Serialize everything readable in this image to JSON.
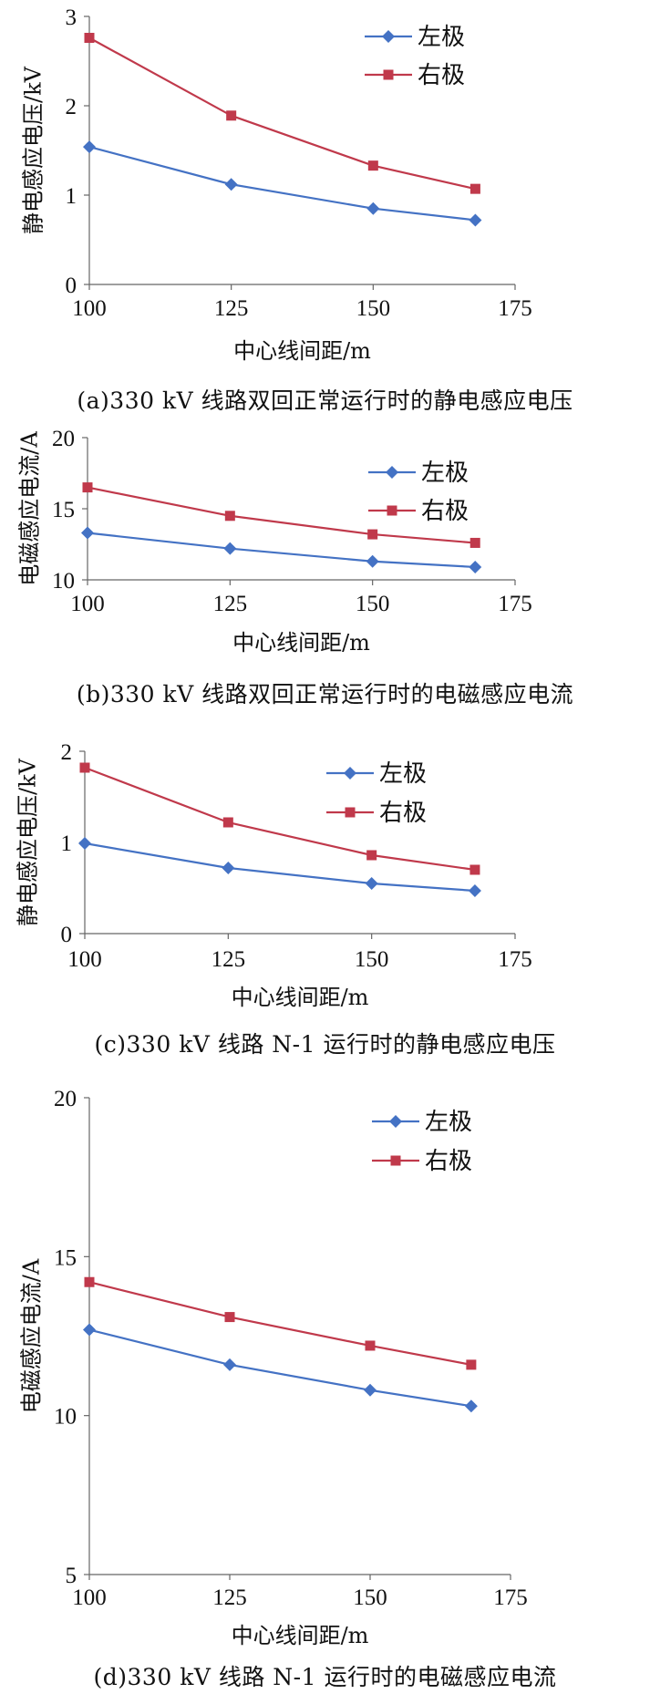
{
  "series_colors": {
    "left": "#4472C4",
    "right": "#C0394B"
  },
  "chart_data": [
    {
      "type": "line",
      "panel": "a",
      "xlabel": "中心线间距/m",
      "ylabel": "静电感应电压/kV",
      "xlim": [
        100,
        175
      ],
      "xticks": [
        100,
        125,
        150,
        175
      ],
      "ylim": [
        0,
        3
      ],
      "yticks": [
        0,
        1,
        2,
        3
      ],
      "grid": false,
      "legend": "top-right",
      "series": [
        {
          "name": "左极",
          "marker": "diamond",
          "x": [
            100,
            125,
            150,
            168
          ],
          "y": [
            1.54,
            1.12,
            0.85,
            0.72
          ]
        },
        {
          "name": "右极",
          "marker": "square",
          "x": [
            100,
            125,
            150,
            168
          ],
          "y": [
            2.76,
            1.89,
            1.33,
            1.07
          ]
        }
      ],
      "caption": "(a)330 kV 线路双回正常运行时的静电感应电压"
    },
    {
      "type": "line",
      "panel": "b",
      "xlabel": "中心线间距/m",
      "ylabel": "电磁感应电流/A",
      "xlim": [
        100,
        175
      ],
      "xticks": [
        100,
        125,
        150,
        175
      ],
      "ylim": [
        10,
        20
      ],
      "yticks": [
        10,
        15,
        20
      ],
      "grid": false,
      "legend": "top-right",
      "series": [
        {
          "name": "左极",
          "marker": "diamond",
          "x": [
            100,
            125,
            150,
            168
          ],
          "y": [
            13.3,
            12.2,
            11.3,
            10.9
          ]
        },
        {
          "name": "右极",
          "marker": "square",
          "x": [
            100,
            125,
            150,
            168
          ],
          "y": [
            16.5,
            14.5,
            13.2,
            12.6
          ]
        }
      ],
      "caption": "(b)330 kV 线路双回正常运行时的电磁感应电流"
    },
    {
      "type": "line",
      "panel": "c",
      "xlabel": "中心线间距/m",
      "ylabel": "静电感应电压/kV",
      "xlim": [
        100,
        175
      ],
      "xticks": [
        100,
        125,
        150,
        175
      ],
      "ylim": [
        0,
        2
      ],
      "yticks": [
        0,
        1,
        2
      ],
      "grid": false,
      "legend": "top-right",
      "series": [
        {
          "name": "左极",
          "marker": "diamond",
          "x": [
            100,
            125,
            150,
            168
          ],
          "y": [
            0.99,
            0.72,
            0.55,
            0.47
          ]
        },
        {
          "name": "右极",
          "marker": "square",
          "x": [
            100,
            125,
            150,
            168
          ],
          "y": [
            1.82,
            1.22,
            0.86,
            0.7
          ]
        }
      ],
      "caption": "(c)330 kV 线路 N-1 运行时的静电感应电压"
    },
    {
      "type": "line",
      "panel": "d",
      "xlabel": "中心线间距/m",
      "ylabel": "电磁感应电流/A",
      "xlim": [
        100,
        175
      ],
      "xticks": [
        100,
        125,
        150,
        175
      ],
      "ylim": [
        5,
        20
      ],
      "yticks": [
        5,
        10,
        15,
        20
      ],
      "grid": false,
      "legend": "top-right",
      "series": [
        {
          "name": "左极",
          "marker": "diamond",
          "x": [
            100,
            125,
            150,
            168
          ],
          "y": [
            12.7,
            11.6,
            10.8,
            10.3
          ]
        },
        {
          "name": "右极",
          "marker": "square",
          "x": [
            100,
            125,
            150,
            168
          ],
          "y": [
            14.2,
            13.1,
            12.2,
            11.6
          ]
        }
      ],
      "caption": "(d)330 kV 线路 N-1 运行时的电磁感应电流"
    }
  ]
}
